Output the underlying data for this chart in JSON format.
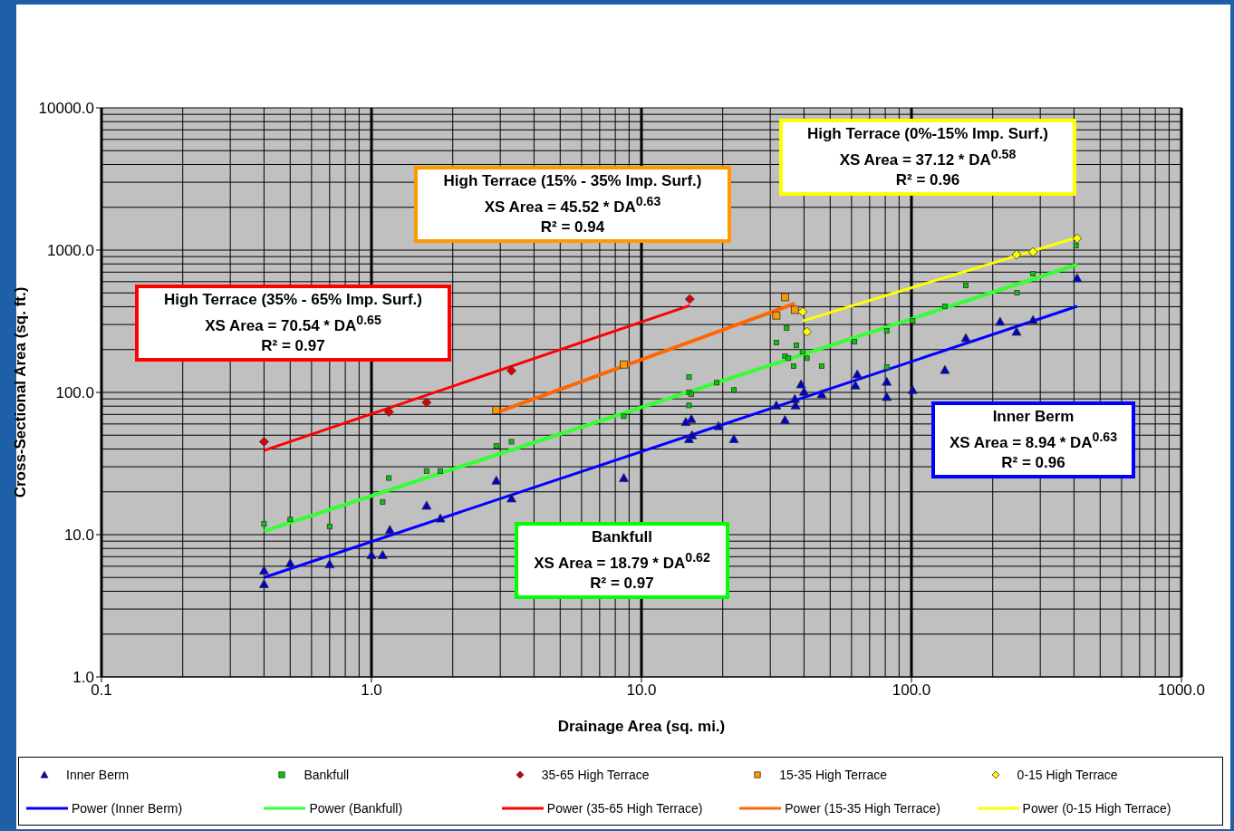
{
  "chart_data": {
    "type": "scatter",
    "xlabel": "Drainage Area (sq. mi.)",
    "ylabel": "Cross-Sectional Area (sq. ft.)",
    "log": "xy",
    "grid": true,
    "legend": "bottom",
    "xlim": [
      0.1,
      1000
    ],
    "xticks": [
      0.1,
      {
        "value": 1,
        "label": "1.0"
      },
      {
        "value": 10,
        "label": "10.0"
      },
      {
        "value": 100,
        "label": "100.0"
      },
      {
        "value": 1000,
        "label": "1000.0"
      }
    ],
    "ylim": [
      1,
      10000
    ],
    "yticks": [
      {
        "value": 1,
        "label": "1.0"
      },
      {
        "value": 10,
        "label": "10.0"
      },
      {
        "value": 100,
        "label": "100.0"
      },
      {
        "value": 1000,
        "label": "1000.0"
      },
      {
        "value": 10000,
        "label": "10000.0"
      }
    ],
    "annotations": [
      "High Terrace (15% - 35% Imp. Surf.)\nXS Area = 45.52 * DA$^{0.63}$\nR² = 0.94",
      "High Terrace (0%-15% Imp. Surf.)\nXS Area = 37.12  * DA$^{0.58}$\nR² = 0.96",
      "High Terrace (35% - 65% Imp. Surf.)\nXS Area = 70.54 * DA$^{0.65}$\nR² = 0.97",
      "Inner Berm\nXS Area = 8.94 * DA$^{0.63}$\nR² = 0.96",
      "Bankfull\nXS Area = 18.79 * DA$^{0.62}$\nR² = 0.97"
    ],
    "series": [
      {
        "name": "Inner Berm",
        "type": "scatter",
        "marker": "triangle",
        "color": "#0000cc",
        "x": [
          0.4,
          0.4,
          0.5,
          0.7,
          1.0,
          1.1,
          1.17,
          1.6,
          1.8,
          2.9,
          3.3,
          8.6,
          14.6,
          15.3,
          15,
          15.4,
          19.3,
          22,
          31.6,
          34,
          37,
          37.2,
          39,
          40,
          46.5,
          63,
          62,
          81,
          81,
          101,
          133,
          159,
          213,
          245,
          282,
          411
        ],
        "values": [
          5.6,
          4.5,
          6.3,
          6.2,
          7.2,
          7.2,
          10.8,
          16,
          13,
          24,
          18,
          25,
          62,
          65,
          47,
          50,
          58,
          47,
          81,
          64,
          90,
          81,
          114,
          101,
          97,
          134,
          112,
          119,
          93,
          104,
          144,
          241,
          314,
          267,
          323,
          635
        ]
      },
      {
        "name": "Bankfull",
        "type": "scatter",
        "marker": "square",
        "color": "#00cc00",
        "x": [
          0.4,
          0.5,
          0.7,
          1.1,
          1.16,
          1.6,
          1.8,
          2.9,
          3.3,
          8.6,
          15,
          15,
          15.3,
          15,
          19,
          22,
          31.6,
          34.5,
          37.5,
          34,
          35,
          36.6,
          39.5,
          41,
          46.5,
          61.5,
          81,
          81,
          101,
          133,
          159,
          246,
          282,
          407
        ],
        "values": [
          11.9,
          12.8,
          11.4,
          17,
          25,
          28,
          28,
          42,
          45,
          68,
          128,
          100,
          97,
          81,
          117,
          104,
          224,
          283,
          214,
          180,
          174,
          153,
          193,
          174,
          153,
          227,
          271,
          151,
          318,
          402,
          564,
          502,
          683,
          1075
        ]
      },
      {
        "name": "35-65 High Terrace",
        "type": "scatter",
        "marker": "diamond",
        "color": "#dd0000",
        "x": [
          0.4,
          1.16,
          1.6,
          3.3,
          15.1
        ],
        "values": [
          45,
          73,
          85,
          142,
          453
        ]
      },
      {
        "name": "15-35 High Terrace",
        "type": "scatter",
        "marker": "square",
        "color": "#ff9900",
        "x": [
          2.9,
          8.6,
          34,
          31.6,
          37
        ],
        "values": [
          75,
          157,
          467,
          347,
          380
        ]
      },
      {
        "name": "0-15 High Terrace",
        "type": "scatter",
        "marker": "diamond",
        "color": "#ffff00",
        "x": [
          39.5,
          41,
          245,
          282,
          411
        ],
        "values": [
          369,
          267,
          929,
          971,
          1210
        ]
      },
      {
        "name": "Power (Inner Berm)",
        "type": "line",
        "marker": "none",
        "color": "#0000ff",
        "x": [
          0.4,
          411
        ],
        "values": [
          5.0,
          403
        ]
      },
      {
        "name": "Power (Bankfull)",
        "type": "line",
        "marker": "none",
        "color": "#33ff33",
        "x": [
          0.4,
          411
        ],
        "values": [
          10.6,
          791
        ]
      },
      {
        "name": "Power (35-65 High Terrace)",
        "type": "line",
        "marker": "none",
        "color": "#ff0000",
        "x": [
          0.4,
          15.1
        ],
        "values": [
          39,
          408
        ]
      },
      {
        "name": "Power (15-35 High Terrace)",
        "type": "line",
        "marker": "none",
        "color": "#ff6600",
        "x": [
          2.9,
          37
        ],
        "values": [
          72,
          421
        ]
      },
      {
        "name": "Power (0-15 High Terrace)",
        "type": "line",
        "marker": "none",
        "color": "#ffff00",
        "x": [
          39.5,
          411
        ],
        "values": [
          318,
          1228
        ]
      }
    ]
  }
}
